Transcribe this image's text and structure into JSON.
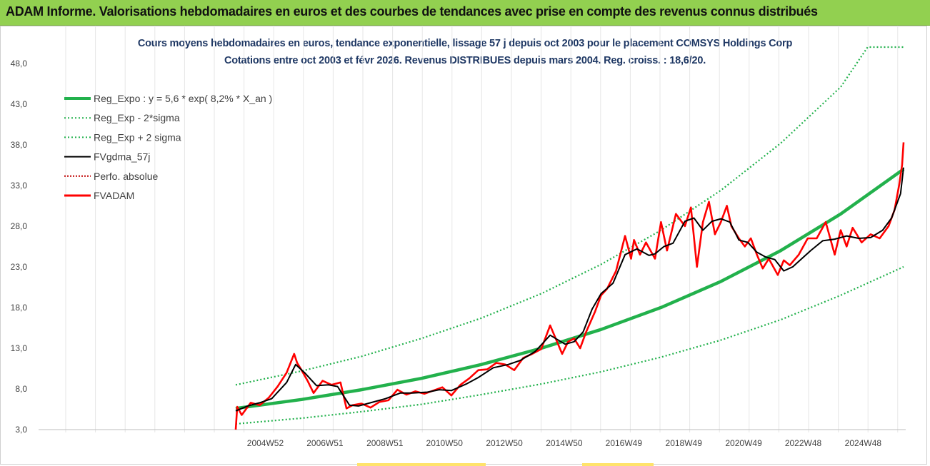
{
  "banner": "ADAM Informe. Valorisations hebdomadaires en euros et des courbes de tendances avec prise en compte des revenus connus distribués",
  "colors": {
    "banner": "#92d050",
    "reg": "#22b14c",
    "band": "#22b14c",
    "fvgdma": "#000000",
    "perfo": "#c00000",
    "fvadam": "#ff0000",
    "title": "#1f3864"
  },
  "chart_data": {
    "type": "line",
    "title": "Cours moyens hebdomadaires en euros, tendance exponentielle, lissage 57 j depuis oct 2003 pour le placement COMSYS Holdings Corp",
    "subtitle": "Cotations entre oct 2003 et févr 2026. Revenus DISTRIBUES depuis mars 2004. Reg. croiss. : 18,6/20.",
    "ylim": [
      3,
      50
    ],
    "xlim": [
      1999.0,
      2026.6
    ],
    "y_ticks": [
      "48,0",
      "43,0",
      "38,0",
      "33,0",
      "28,0",
      "23,0",
      "18,0",
      "13,0",
      "8,0",
      "3,0"
    ],
    "x_ticks": [
      "2004W52",
      "2006W51",
      "2008W51",
      "2010W50",
      "2012W50",
      "2014W50",
      "2016W49",
      "2018W49",
      "2020W49",
      "2022W48",
      "2024W48"
    ],
    "legend_position": "top-left",
    "grid": "vertical",
    "series": [
      {
        "name": "Reg_Expo : y = 5,6 * exp( 8,2% *  X_an )",
        "x": [
          2003.8,
          2006,
          2008,
          2010,
          2012,
          2014,
          2016,
          2018,
          2020,
          2022,
          2024,
          2026.1
        ],
        "y": [
          5.6,
          6.7,
          7.9,
          9.3,
          11.0,
          13.0,
          15.3,
          18.0,
          21.2,
          25.0,
          29.5,
          35.0
        ]
      },
      {
        "name": "Reg_Exp - 2*sigma",
        "x": [
          2003.8,
          2006,
          2008,
          2010,
          2012,
          2014,
          2016,
          2018,
          2020,
          2022,
          2024,
          2026.1
        ],
        "y": [
          3.7,
          4.4,
          5.2,
          6.1,
          7.3,
          8.6,
          10.1,
          11.9,
          14.0,
          16.5,
          19.5,
          23.0
        ]
      },
      {
        "name": "Reg_Exp + 2 sigma",
        "x": [
          2003.8,
          2006,
          2008,
          2010,
          2012,
          2014,
          2016,
          2018,
          2020,
          2022,
          2024,
          2024.9,
          2026.1
        ],
        "y": [
          8.5,
          10.2,
          12.0,
          14.2,
          16.7,
          19.7,
          23.3,
          27.5,
          32.4,
          38.2,
          45.1,
          50.0,
          50.0
        ]
      },
      {
        "name": "FVgdma_57j",
        "x": [
          2003.8,
          2004.2,
          2004.6,
          2005.0,
          2005.5,
          2005.8,
          2006.1,
          2006.5,
          2006.9,
          2007.2,
          2007.6,
          2007.9,
          2008.3,
          2008.8,
          2009.3,
          2009.7,
          2010.2,
          2010.6,
          2011.0,
          2011.5,
          2011.9,
          2012.4,
          2012.9,
          2013.3,
          2013.8,
          2014.3,
          2014.8,
          2015.1,
          2015.4,
          2015.7,
          2016.0,
          2016.4,
          2016.8,
          2017.2,
          2017.6,
          2017.8,
          2018.1,
          2018.4,
          2018.8,
          2019.1,
          2019.4,
          2019.7,
          2020.0,
          2020.3,
          2020.6,
          2020.9,
          2021.2,
          2021.5,
          2021.8,
          2022.1,
          2022.4,
          2022.7,
          2023.0,
          2023.4,
          2023.8,
          2024.2,
          2024.6,
          2025.0,
          2025.4,
          2025.7,
          2026.0,
          2026.1
        ],
        "y": [
          5.3,
          5.9,
          6.3,
          6.8,
          8.8,
          11.0,
          10.0,
          8.4,
          8.5,
          8.3,
          6.0,
          5.9,
          6.3,
          6.8,
          7.5,
          7.5,
          7.6,
          7.9,
          7.8,
          8.6,
          9.4,
          10.6,
          11.0,
          11.5,
          12.6,
          14.6,
          13.5,
          13.8,
          15.0,
          17.8,
          19.7,
          21.0,
          24.5,
          25.2,
          24.4,
          24.6,
          25.5,
          25.9,
          28.6,
          29.0,
          27.5,
          28.6,
          28.9,
          28.5,
          26.3,
          26.0,
          24.8,
          24.2,
          23.9,
          22.5,
          23.0,
          24.0,
          25.0,
          26.2,
          26.4,
          26.8,
          26.5,
          26.6,
          27.5,
          29.0,
          32.0,
          35.2
        ]
      },
      {
        "name": "Perfo. absolue",
        "x": [],
        "y": []
      },
      {
        "name": "FVADAM",
        "x": [
          2003.8,
          2003.85,
          2004.0,
          2004.3,
          2004.6,
          2004.9,
          2005.2,
          2005.5,
          2005.75,
          2005.85,
          2006.0,
          2006.2,
          2006.4,
          2006.7,
          2007.0,
          2007.3,
          2007.5,
          2007.7,
          2008.0,
          2008.3,
          2008.6,
          2008.9,
          2009.2,
          2009.5,
          2009.8,
          2010.1,
          2010.4,
          2010.7,
          2011.0,
          2011.3,
          2011.6,
          2011.9,
          2012.2,
          2012.5,
          2012.8,
          2013.1,
          2013.4,
          2013.7,
          2014.0,
          2014.3,
          2014.45,
          2014.7,
          2014.9,
          2015.1,
          2015.3,
          2015.5,
          2015.8,
          2016.0,
          2016.2,
          2016.5,
          2016.8,
          2017.0,
          2017.1,
          2017.3,
          2017.5,
          2017.8,
          2018.0,
          2018.2,
          2018.5,
          2018.8,
          2019.0,
          2019.2,
          2019.4,
          2019.6,
          2019.8,
          2020.0,
          2020.2,
          2020.35,
          2020.6,
          2020.8,
          2021.0,
          2021.2,
          2021.4,
          2021.6,
          2021.9,
          2022.1,
          2022.3,
          2022.6,
          2022.9,
          2023.2,
          2023.5,
          2023.8,
          2024.0,
          2024.2,
          2024.4,
          2024.7,
          2025.0,
          2025.3,
          2025.6,
          2025.8,
          2025.95,
          2026.05,
          2026.1
        ],
        "y": [
          3.0,
          5.8,
          4.8,
          6.3,
          6.0,
          6.9,
          8.3,
          10.0,
          12.3,
          11.2,
          10.3,
          9.0,
          7.5,
          9.0,
          8.5,
          8.8,
          5.6,
          6.0,
          6.2,
          5.7,
          6.4,
          6.6,
          7.9,
          7.3,
          7.7,
          7.4,
          7.8,
          8.2,
          7.2,
          8.5,
          9.3,
          10.3,
          10.4,
          11.2,
          11.0,
          10.3,
          11.8,
          12.3,
          12.9,
          15.8,
          14.5,
          12.3,
          13.8,
          14.2,
          13.0,
          15.0,
          17.5,
          19.5,
          20.3,
          22.5,
          26.8,
          24.0,
          26.3,
          24.5,
          26.0,
          24.0,
          28.5,
          25.0,
          29.5,
          28.0,
          30.3,
          23.0,
          28.5,
          31.0,
          27.0,
          28.5,
          30.5,
          28.0,
          26.5,
          25.5,
          26.5,
          24.5,
          22.8,
          24.0,
          22.0,
          23.8,
          23.2,
          24.5,
          26.5,
          26.5,
          28.5,
          24.5,
          27.5,
          25.5,
          27.8,
          26.0,
          27.0,
          26.5,
          28.0,
          30.0,
          33.0,
          35.5,
          38.3
        ]
      }
    ]
  }
}
